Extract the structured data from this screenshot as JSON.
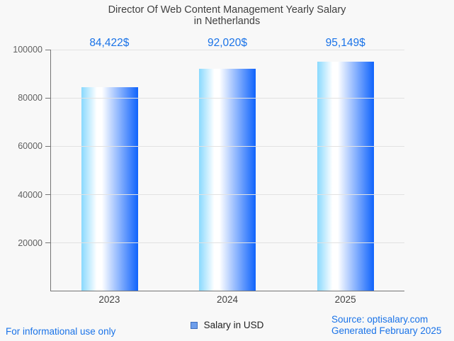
{
  "title": {
    "line1": "Director Of Web Content Management Yearly Salary",
    "line2": "in Netherlands"
  },
  "chart_data": {
    "type": "bar",
    "title": "Director Of Web Content Management Yearly Salary in Netherlands",
    "categories": [
      "2023",
      "2024",
      "2025"
    ],
    "series": [
      {
        "name": "Salary in USD",
        "values": [
          84422,
          92020,
          95149
        ],
        "value_labels": [
          "84,422$",
          "92,020$",
          "95,149$"
        ]
      }
    ],
    "xlabel": "",
    "ylabel": "",
    "ylim": [
      0,
      100000
    ],
    "yticks": [
      100000,
      80000,
      60000,
      40000,
      20000
    ],
    "grid": true,
    "legend_position": "bottom",
    "colors": {
      "bar_gradient": [
        "#89d9fe",
        "#ffffff",
        "#0f63fc"
      ],
      "value_label_blue": "#1a73e8",
      "legend_marker": "#6d9eeb",
      "axis": "#757575",
      "gridline": "#e2e2e2",
      "background": "#f8f8f8"
    }
  },
  "legend": {
    "label": "Salary in USD",
    "marker_color": "#6d9eeb"
  },
  "footer": {
    "disclaimer": "For informational use only",
    "source": "Source: optisalary.com",
    "generated": "Generated February 2025"
  }
}
